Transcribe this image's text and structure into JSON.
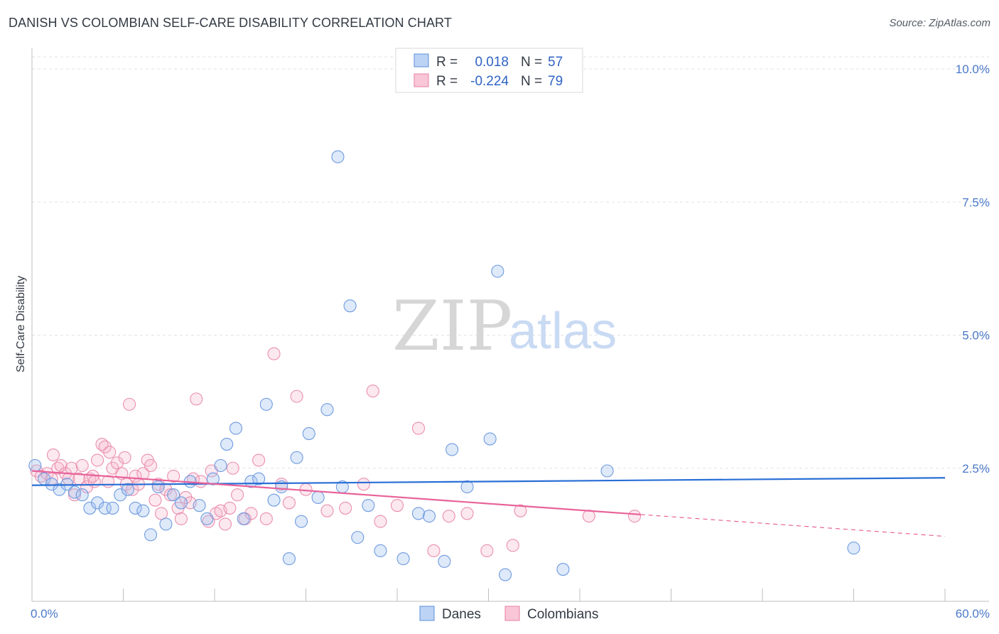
{
  "title": "DANISH VS COLOMBIAN SELF-CARE DISABILITY CORRELATION CHART",
  "source": "Source: ZipAtlas.com",
  "watermark": {
    "zip": "ZIP",
    "atlas": "atlas"
  },
  "legend": {
    "r_label": "R =",
    "n_label": "N =",
    "rows": [
      {
        "r": "0.018",
        "n": "57"
      },
      {
        "r": "-0.224",
        "n": "79"
      }
    ]
  },
  "chart_data": {
    "type": "scatter",
    "title": "DANISH VS COLOMBIAN SELF-CARE DISABILITY CORRELATION CHART",
    "xlabel": "",
    "ylabel": "Self-Care Disability",
    "xlim": [
      0,
      60
    ],
    "ylim": [
      0,
      10.5
    ],
    "x_tick_labels": [
      "0.0%",
      "60.0%"
    ],
    "y_ticks": [
      2.5,
      5.0,
      7.5,
      10.0
    ],
    "y_tick_labels": [
      "2.5%",
      "5.0%",
      "7.5%",
      "10.0%"
    ],
    "grid": true,
    "legend_position": "top-center",
    "colors": {
      "danes": "#5b8fdb",
      "colombians": "#e97fa2",
      "danes_line": "#2a6fd6",
      "colombians_line": "#e8629a"
    },
    "series": [
      {
        "name": "Danes",
        "trend": {
          "x0": 0,
          "y0": 2.18,
          "x1": 60,
          "y1": 2.32,
          "solid_to": 60
        },
        "points": [
          [
            0.2,
            2.55
          ],
          [
            0.8,
            2.3
          ],
          [
            1.3,
            2.2
          ],
          [
            1.8,
            2.1
          ],
          [
            2.3,
            2.2
          ],
          [
            2.8,
            2.05
          ],
          [
            3.3,
            2.0
          ],
          [
            3.8,
            1.75
          ],
          [
            4.3,
            1.85
          ],
          [
            4.8,
            1.75
          ],
          [
            5.3,
            1.75
          ],
          [
            5.8,
            2.0
          ],
          [
            6.3,
            2.1
          ],
          [
            6.8,
            1.75
          ],
          [
            7.3,
            1.7
          ],
          [
            7.8,
            1.25
          ],
          [
            8.3,
            2.15
          ],
          [
            8.8,
            1.45
          ],
          [
            9.3,
            2.0
          ],
          [
            9.8,
            1.85
          ],
          [
            10.4,
            2.25
          ],
          [
            11.0,
            1.8
          ],
          [
            11.5,
            1.55
          ],
          [
            11.9,
            2.3
          ],
          [
            12.4,
            2.55
          ],
          [
            12.8,
            2.95
          ],
          [
            13.4,
            3.25
          ],
          [
            13.9,
            1.55
          ],
          [
            14.4,
            2.25
          ],
          [
            14.9,
            2.3
          ],
          [
            15.4,
            3.7
          ],
          [
            15.9,
            1.9
          ],
          [
            16.4,
            2.15
          ],
          [
            16.9,
            0.8
          ],
          [
            17.4,
            2.7
          ],
          [
            17.7,
            1.5
          ],
          [
            18.2,
            3.15
          ],
          [
            18.8,
            1.95
          ],
          [
            19.4,
            3.6
          ],
          [
            20.1,
            8.35
          ],
          [
            20.4,
            2.15
          ],
          [
            20.9,
            5.55
          ],
          [
            21.4,
            1.2
          ],
          [
            22.1,
            1.8
          ],
          [
            22.9,
            0.95
          ],
          [
            24.4,
            0.8
          ],
          [
            25.4,
            1.65
          ],
          [
            26.1,
            1.6
          ],
          [
            27.1,
            0.75
          ],
          [
            27.6,
            2.85
          ],
          [
            28.6,
            2.15
          ],
          [
            30.1,
            3.05
          ],
          [
            30.6,
            6.2
          ],
          [
            31.1,
            0.5
          ],
          [
            34.9,
            0.6
          ],
          [
            37.8,
            2.45
          ],
          [
            54.0,
            1.0
          ]
        ]
      },
      {
        "name": "Colombians",
        "trend": {
          "x0": 0,
          "y0": 2.45,
          "x1": 60,
          "y1": 1.22,
          "solid_to": 40
        },
        "points": [
          [
            0.3,
            2.45
          ],
          [
            0.6,
            2.35
          ],
          [
            1.0,
            2.4
          ],
          [
            1.3,
            2.3
          ],
          [
            1.4,
            2.75
          ],
          [
            1.7,
            2.5
          ],
          [
            1.9,
            2.55
          ],
          [
            2.2,
            2.4
          ],
          [
            2.4,
            2.3
          ],
          [
            2.6,
            2.5
          ],
          [
            2.8,
            2.0
          ],
          [
            3.1,
            2.3
          ],
          [
            3.3,
            2.55
          ],
          [
            3.6,
            2.15
          ],
          [
            3.8,
            2.3
          ],
          [
            4.0,
            2.35
          ],
          [
            4.1,
            2.25
          ],
          [
            4.3,
            2.65
          ],
          [
            4.6,
            2.95
          ],
          [
            4.8,
            2.9
          ],
          [
            5.0,
            2.25
          ],
          [
            5.1,
            2.8
          ],
          [
            5.3,
            2.5
          ],
          [
            5.6,
            2.6
          ],
          [
            5.9,
            2.4
          ],
          [
            6.1,
            2.7
          ],
          [
            6.2,
            2.2
          ],
          [
            6.4,
            3.7
          ],
          [
            6.6,
            2.1
          ],
          [
            6.8,
            2.35
          ],
          [
            7.0,
            2.2
          ],
          [
            7.3,
            2.4
          ],
          [
            7.6,
            2.65
          ],
          [
            7.8,
            2.55
          ],
          [
            8.1,
            1.9
          ],
          [
            8.3,
            2.2
          ],
          [
            8.5,
            1.65
          ],
          [
            8.8,
            2.1
          ],
          [
            9.1,
            2.0
          ],
          [
            9.3,
            2.35
          ],
          [
            9.6,
            1.75
          ],
          [
            9.8,
            1.55
          ],
          [
            10.1,
            1.95
          ],
          [
            10.4,
            1.85
          ],
          [
            10.6,
            2.3
          ],
          [
            10.8,
            3.8
          ],
          [
            11.1,
            2.25
          ],
          [
            11.6,
            1.5
          ],
          [
            11.8,
            2.45
          ],
          [
            12.1,
            1.65
          ],
          [
            12.4,
            1.7
          ],
          [
            12.7,
            1.45
          ],
          [
            13.0,
            1.75
          ],
          [
            13.2,
            2.5
          ],
          [
            13.5,
            2.0
          ],
          [
            14.0,
            1.55
          ],
          [
            14.4,
            1.65
          ],
          [
            14.9,
            2.65
          ],
          [
            15.4,
            1.55
          ],
          [
            15.9,
            4.65
          ],
          [
            16.4,
            2.2
          ],
          [
            16.9,
            1.85
          ],
          [
            17.4,
            3.85
          ],
          [
            18.0,
            2.1
          ],
          [
            19.4,
            1.7
          ],
          [
            20.6,
            1.75
          ],
          [
            21.8,
            2.2
          ],
          [
            22.4,
            3.95
          ],
          [
            22.9,
            1.5
          ],
          [
            24.0,
            1.8
          ],
          [
            25.4,
            3.25
          ],
          [
            26.4,
            0.95
          ],
          [
            27.4,
            1.6
          ],
          [
            28.6,
            1.65
          ],
          [
            29.9,
            0.95
          ],
          [
            31.6,
            1.05
          ],
          [
            32.1,
            1.7
          ],
          [
            36.6,
            1.6
          ],
          [
            39.6,
            1.6
          ]
        ]
      }
    ]
  },
  "bottom_legend": [
    "Danes",
    "Colombians"
  ]
}
